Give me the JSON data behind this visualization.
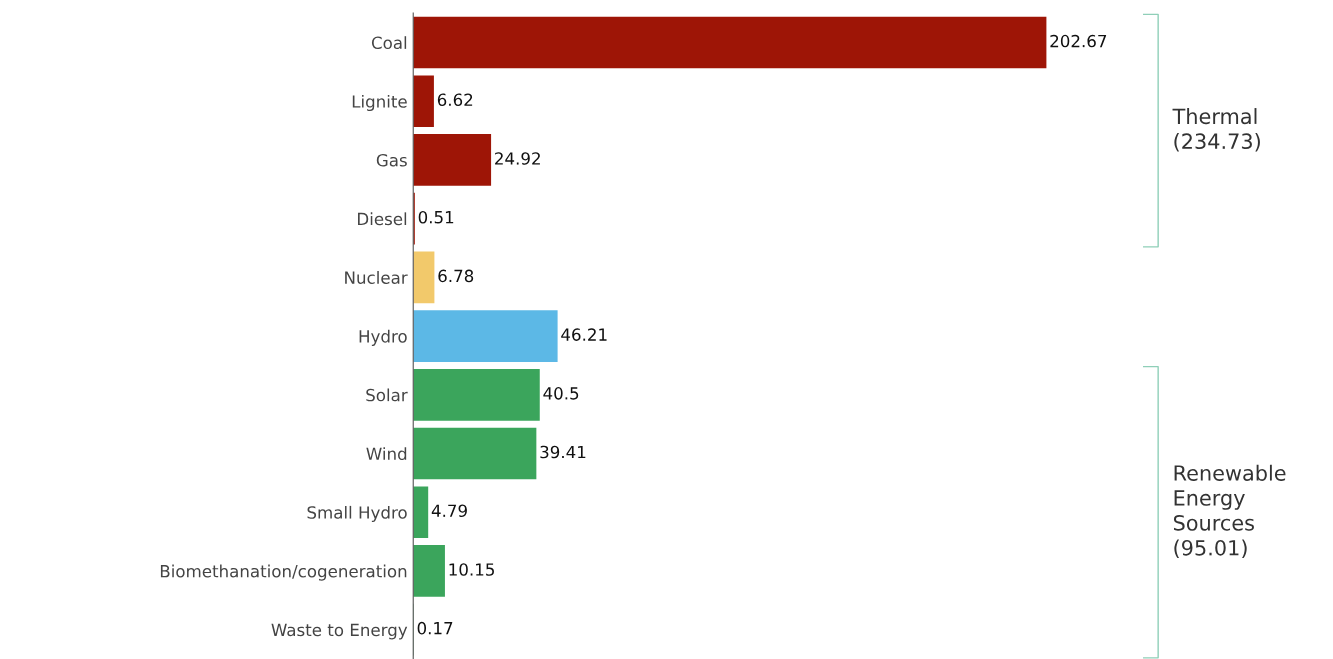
{
  "chart_data": {
    "type": "bar",
    "orientation": "horizontal",
    "data_labels": true,
    "categories": [
      "Coal",
      "Lignite",
      "Gas",
      "Diesel",
      "Nuclear",
      "Hydro",
      "Solar",
      "Wind",
      "Small Hydro",
      "Biomethanation/cogeneration",
      "Waste to Energy"
    ],
    "values": [
      202.67,
      6.62,
      24.92,
      0.51,
      6.78,
      46.21,
      40.5,
      39.41,
      4.79,
      10.15,
      0.17
    ],
    "colors": [
      "#9e1506",
      "#9e1506",
      "#9e1506",
      "#9e1506",
      "#f2c96b",
      "#5cb8e6",
      "#3ba55c",
      "#3ba55c",
      "#3ba55c",
      "#3ba55c",
      "#3ba55c"
    ],
    "annotations": [
      "Thermal\n(234.73)",
      "Renewable\nEnergy\nSources\n(95.01)"
    ],
    "grid": false,
    "legend": false
  }
}
